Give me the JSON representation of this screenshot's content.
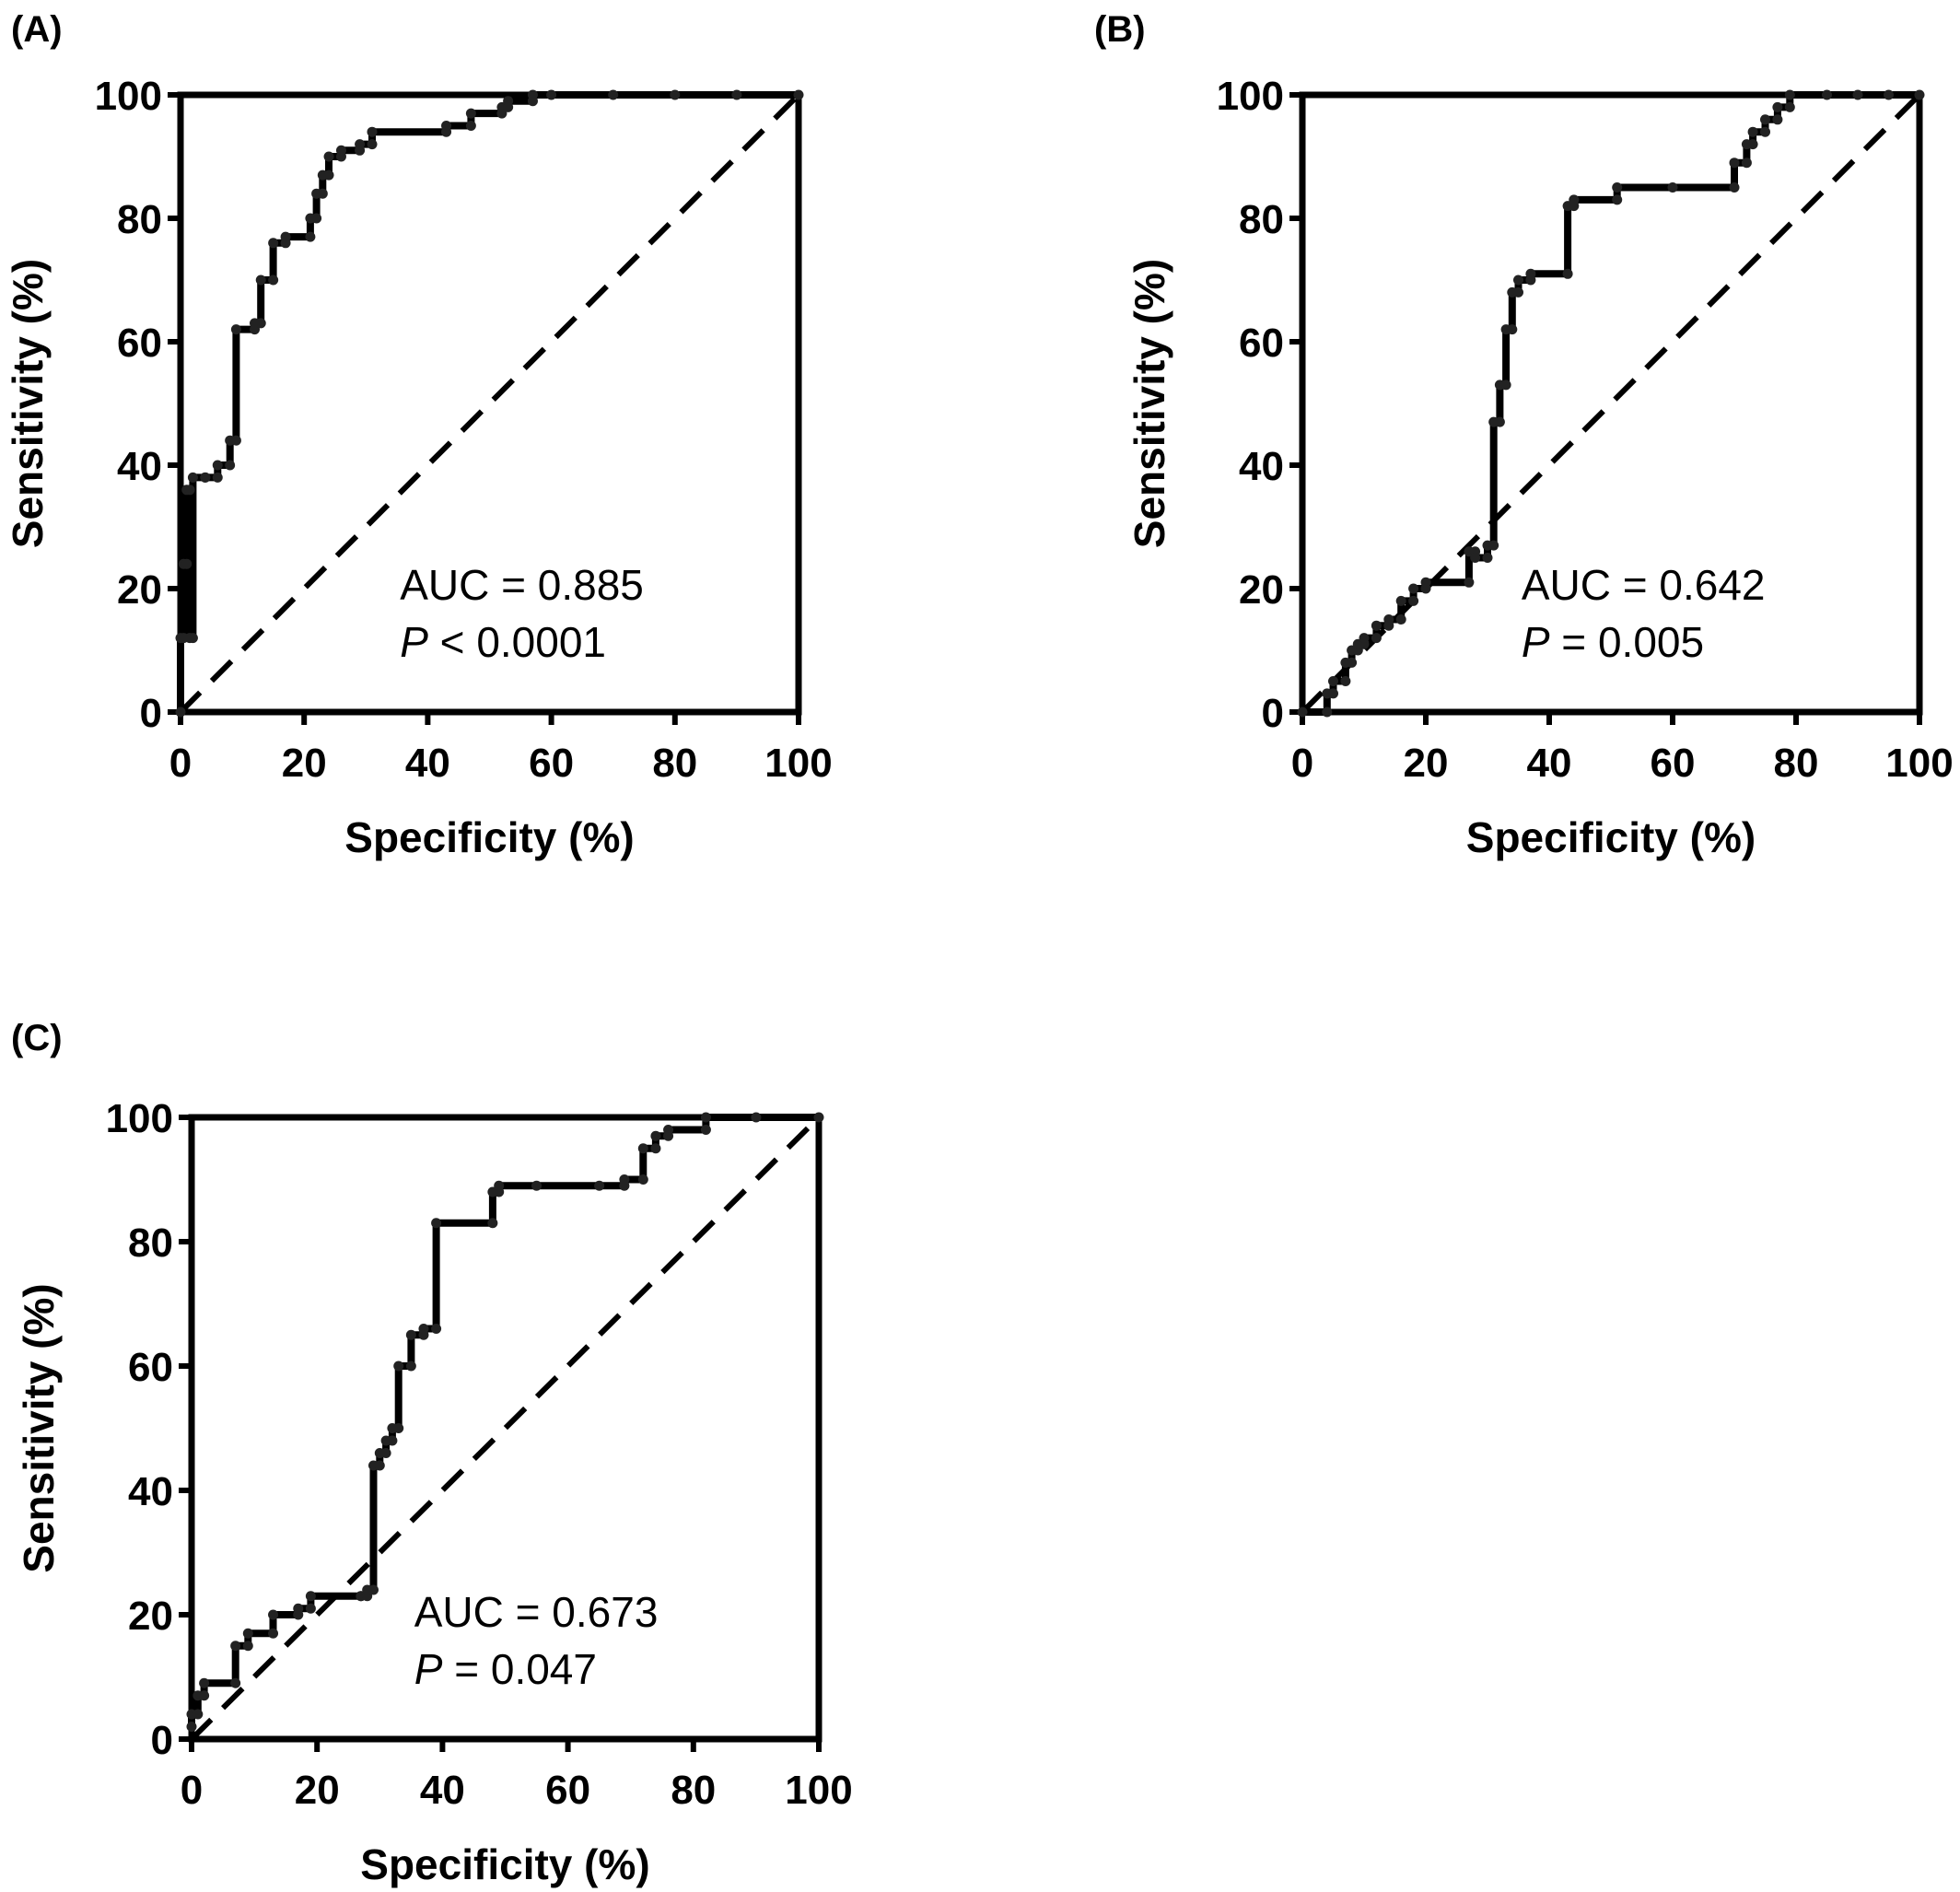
{
  "chart_data": [
    {
      "type": "line",
      "panel_label": "(A)",
      "xlabel": "Specificity (%)",
      "ylabel": "Sensitivity (%)",
      "xlim": [
        0,
        100
      ],
      "ylim": [
        0,
        100
      ],
      "xticks": [
        "0",
        "20",
        "40",
        "60",
        "80",
        "100"
      ],
      "yticks": [
        "0",
        "20",
        "40",
        "60",
        "80",
        "100"
      ],
      "grid": false,
      "reference_line": {
        "x": [
          0,
          100
        ],
        "y": [
          0,
          100
        ],
        "style": "dashed"
      },
      "annotation": {
        "auc": "AUC = 0.885",
        "p_symbol": "P",
        "p_text": " < 0.0001"
      },
      "series": [
        {
          "x": [
            0,
            0,
            0.5,
            0.5,
            1,
            1,
            1.5,
            1.5,
            2,
            2,
            4,
            4,
            6,
            6,
            8,
            8,
            9,
            9,
            12,
            12,
            13,
            13,
            15,
            15,
            17,
            17,
            21,
            21,
            22,
            22,
            23,
            23,
            24,
            24,
            26,
            26,
            29,
            29,
            31,
            31,
            43,
            43,
            47,
            47,
            52,
            52,
            53,
            53,
            57,
            57,
            60,
            70,
            80,
            90,
            100
          ],
          "y": [
            0,
            12,
            12,
            24,
            24,
            36,
            36,
            12,
            12,
            38,
            38,
            38,
            38,
            40,
            40,
            44,
            44,
            62,
            62,
            63,
            63,
            70,
            70,
            76,
            76,
            77,
            77,
            80,
            80,
            84,
            84,
            87,
            87,
            90,
            90,
            91,
            91,
            92,
            92,
            94,
            94,
            95,
            95,
            97,
            97,
            98,
            98,
            99,
            99,
            100,
            100,
            100,
            100,
            100,
            100
          ]
        }
      ]
    },
    {
      "type": "line",
      "panel_label": "(B)",
      "xlabel": "Specificity (%)",
      "ylabel": "Sensitivity (%)",
      "xlim": [
        0,
        100
      ],
      "ylim": [
        0,
        100
      ],
      "xticks": [
        "0",
        "20",
        "40",
        "60",
        "80",
        "100"
      ],
      "yticks": [
        "0",
        "20",
        "40",
        "60",
        "80",
        "100"
      ],
      "grid": false,
      "reference_line": {
        "x": [
          0,
          100
        ],
        "y": [
          0,
          100
        ],
        "style": "dashed"
      },
      "annotation": {
        "auc": "AUC = 0.642",
        "p_symbol": "P",
        "p_text": " = 0.005"
      },
      "series": [
        {
          "x": [
            0,
            4,
            4,
            5,
            5,
            7,
            7,
            8,
            8,
            9,
            9,
            10,
            10,
            12,
            12,
            14,
            14,
            16,
            16,
            18,
            18,
            20,
            20,
            27,
            27,
            28,
            28,
            30,
            30,
            31,
            31,
            32,
            32,
            33,
            33,
            34,
            34,
            35,
            35,
            37,
            37,
            43,
            43,
            44,
            44,
            51,
            51,
            60,
            70,
            70,
            72,
            72,
            73,
            73,
            75,
            75,
            77,
            77,
            79,
            79,
            85,
            90,
            95,
            100
          ],
          "y": [
            0,
            0,
            3,
            3,
            5,
            5,
            8,
            8,
            10,
            10,
            11,
            11,
            12,
            12,
            14,
            14,
            15,
            15,
            18,
            18,
            20,
            20,
            21,
            21,
            26,
            26,
            25,
            25,
            27,
            27,
            47,
            47,
            53,
            53,
            62,
            62,
            68,
            68,
            70,
            70,
            71,
            71,
            82,
            82,
            83,
            83,
            85,
            85,
            85,
            89,
            89,
            92,
            92,
            94,
            94,
            96,
            96,
            98,
            98,
            100,
            100,
            100,
            100,
            100
          ]
        }
      ]
    },
    {
      "type": "line",
      "panel_label": "(C)",
      "xlabel": "Specificity (%)",
      "ylabel": "Sensitivity (%)",
      "xlim": [
        0,
        100
      ],
      "ylim": [
        0,
        100
      ],
      "xticks": [
        "0",
        "20",
        "40",
        "60",
        "80",
        "100"
      ],
      "yticks": [
        "0",
        "20",
        "40",
        "60",
        "80",
        "100"
      ],
      "grid": false,
      "reference_line": {
        "x": [
          0,
          100
        ],
        "y": [
          0,
          100
        ],
        "style": "dashed"
      },
      "annotation": {
        "auc": "AUC = 0.673",
        "p_symbol": "P",
        "p_text": " = 0.047"
      },
      "series": [
        {
          "x": [
            0,
            0,
            1,
            1,
            2,
            2,
            7,
            7,
            9,
            9,
            13,
            13,
            17,
            17,
            19,
            19,
            27,
            27,
            28,
            28,
            29,
            29,
            30,
            30,
            31,
            31,
            32,
            32,
            33,
            33,
            35,
            35,
            37,
            37,
            39,
            39,
            48,
            48,
            49,
            49,
            55,
            65,
            69,
            69,
            72,
            72,
            74,
            74,
            76,
            76,
            82,
            82,
            90,
            100
          ],
          "y": [
            2,
            4,
            4,
            7,
            7,
            9,
            9,
            15,
            15,
            17,
            17,
            20,
            20,
            21,
            21,
            23,
            23,
            23,
            23,
            24,
            24,
            44,
            44,
            46,
            46,
            48,
            48,
            50,
            50,
            60,
            60,
            65,
            65,
            66,
            66,
            83,
            83,
            88,
            88,
            89,
            89,
            89,
            89,
            90,
            90,
            95,
            95,
            97,
            97,
            98,
            98,
            100,
            100,
            100
          ]
        }
      ]
    }
  ]
}
